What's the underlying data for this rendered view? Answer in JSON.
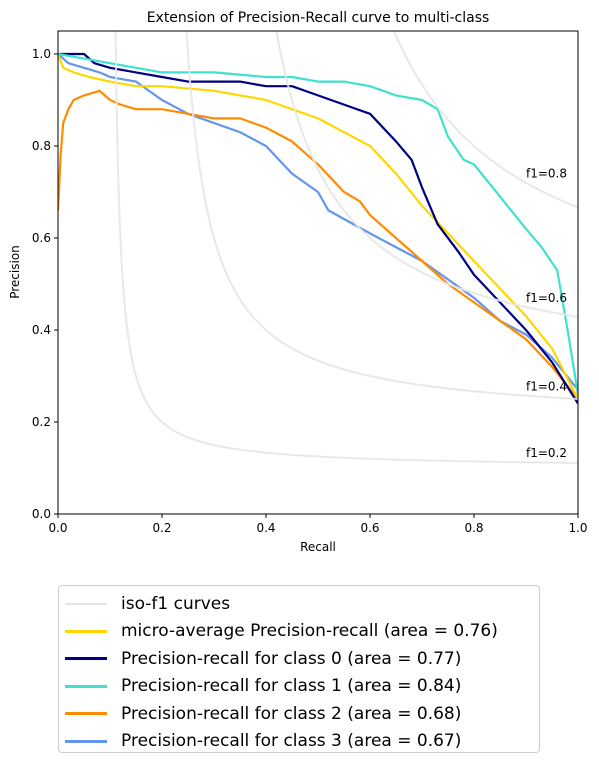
{
  "chart_data": {
    "type": "line",
    "title": "Extension of Precision-Recall curve to multi-class",
    "xlabel": "Recall",
    "ylabel": "Precision",
    "xlim": [
      0.0,
      1.0
    ],
    "ylim": [
      0.0,
      1.05
    ],
    "xticks": [
      "0.0",
      "0.2",
      "0.4",
      "0.6",
      "0.8",
      "1.0"
    ],
    "yticks": [
      "0.0",
      "0.2",
      "0.4",
      "0.6",
      "0.8",
      "1.0"
    ],
    "grid": false,
    "legend_placement": "below",
    "iso_f1": {
      "name": "iso-f1 curves",
      "color": "#e6e6e6",
      "values": [
        0.2,
        0.4,
        0.6,
        0.8
      ],
      "labels": [
        "f1=0.2",
        "f1=0.4",
        "f1=0.6",
        "f1=0.8"
      ]
    },
    "series": [
      {
        "name": "micro-average Precision-recall (area = 0.76)",
        "color": "#ffd700",
        "x": [
          0.0,
          0.01,
          0.03,
          0.06,
          0.1,
          0.15,
          0.2,
          0.3,
          0.4,
          0.45,
          0.5,
          0.55,
          0.6,
          0.65,
          0.7,
          0.75,
          0.8,
          0.85,
          0.9,
          0.95,
          1.0
        ],
        "y": [
          1.0,
          0.97,
          0.96,
          0.95,
          0.94,
          0.93,
          0.93,
          0.92,
          0.9,
          0.88,
          0.86,
          0.83,
          0.8,
          0.74,
          0.67,
          0.61,
          0.55,
          0.49,
          0.43,
          0.36,
          0.25
        ]
      },
      {
        "name": "Precision-recall for class 0 (area = 0.77)",
        "color": "#000080",
        "x": [
          0.0,
          0.05,
          0.07,
          0.1,
          0.15,
          0.2,
          0.25,
          0.3,
          0.35,
          0.4,
          0.45,
          0.5,
          0.55,
          0.6,
          0.65,
          0.68,
          0.7,
          0.73,
          0.77,
          0.8,
          0.85,
          0.9,
          0.95,
          1.0
        ],
        "y": [
          1.0,
          1.0,
          0.98,
          0.97,
          0.96,
          0.95,
          0.94,
          0.94,
          0.94,
          0.93,
          0.93,
          0.91,
          0.89,
          0.87,
          0.81,
          0.77,
          0.71,
          0.63,
          0.57,
          0.52,
          0.46,
          0.4,
          0.33,
          0.24
        ]
      },
      {
        "name": "Precision-recall for class 1 (area = 0.84)",
        "color": "#40e0d0",
        "x": [
          0.0,
          0.05,
          0.1,
          0.15,
          0.2,
          0.3,
          0.4,
          0.45,
          0.5,
          0.55,
          0.6,
          0.65,
          0.7,
          0.73,
          0.75,
          0.78,
          0.8,
          0.85,
          0.9,
          0.93,
          0.96,
          0.98,
          1.0
        ],
        "y": [
          1.0,
          0.99,
          0.98,
          0.97,
          0.96,
          0.96,
          0.95,
          0.95,
          0.94,
          0.94,
          0.93,
          0.91,
          0.9,
          0.88,
          0.82,
          0.77,
          0.76,
          0.69,
          0.62,
          0.58,
          0.53,
          0.4,
          0.26
        ]
      },
      {
        "name": "Precision-recall for class 2 (area = 0.68)",
        "color": "#ff8c00",
        "x": [
          0.0,
          0.005,
          0.01,
          0.02,
          0.03,
          0.05,
          0.08,
          0.1,
          0.12,
          0.15,
          0.2,
          0.25,
          0.3,
          0.35,
          0.4,
          0.45,
          0.5,
          0.55,
          0.58,
          0.6,
          0.65,
          0.7,
          0.75,
          0.8,
          0.85,
          0.9,
          0.95,
          1.0
        ],
        "y": [
          0.66,
          0.78,
          0.85,
          0.88,
          0.9,
          0.91,
          0.92,
          0.9,
          0.89,
          0.88,
          0.88,
          0.87,
          0.86,
          0.86,
          0.84,
          0.81,
          0.76,
          0.7,
          0.68,
          0.65,
          0.6,
          0.55,
          0.5,
          0.46,
          0.42,
          0.38,
          0.32,
          0.25
        ]
      },
      {
        "name": "Precision-recall for class 3 (area = 0.67)",
        "color": "#6495ed",
        "x": [
          0.0,
          0.02,
          0.05,
          0.08,
          0.1,
          0.15,
          0.2,
          0.25,
          0.3,
          0.35,
          0.4,
          0.45,
          0.5,
          0.52,
          0.6,
          0.7,
          0.8,
          0.85,
          0.9,
          0.95,
          1.0
        ],
        "y": [
          1.0,
          0.98,
          0.97,
          0.96,
          0.95,
          0.94,
          0.9,
          0.87,
          0.85,
          0.83,
          0.8,
          0.74,
          0.7,
          0.66,
          0.61,
          0.55,
          0.47,
          0.42,
          0.39,
          0.34,
          0.27
        ]
      }
    ]
  }
}
